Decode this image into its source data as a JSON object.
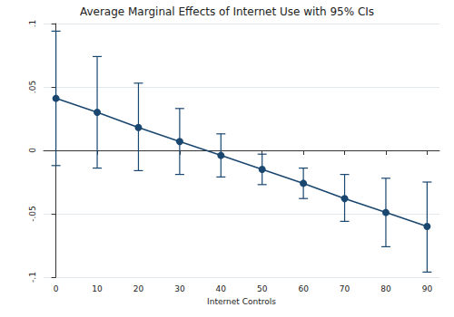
{
  "chart_data": {
    "type": "line",
    "title": "Average Marginal Effects of Internet Use with 95% CIs",
    "x_label": "Internet Controls",
    "x": [
      0,
      10,
      20,
      30,
      40,
      50,
      60,
      70,
      80,
      90
    ],
    "values": [
      0.041,
      0.03,
      0.018,
      0.007,
      -0.004,
      -0.015,
      -0.026,
      -0.038,
      -0.049,
      -0.06
    ],
    "ci_lower": [
      -0.012,
      -0.014,
      -0.016,
      -0.019,
      -0.021,
      -0.027,
      -0.038,
      -0.056,
      -0.076,
      -0.096
    ],
    "ci_upper": [
      0.094,
      0.074,
      0.053,
      0.033,
      0.013,
      -0.003,
      -0.014,
      -0.019,
      -0.022,
      -0.025
    ],
    "color": "#1a476f",
    "marker": "circle",
    "line_style": "solid",
    "grid": true,
    "xlim": [
      -3,
      93
    ],
    "xticks": [
      0,
      10,
      20,
      30,
      40,
      50,
      60,
      70,
      80,
      90
    ],
    "ylim": [
      -0.1,
      0.1
    ],
    "yticks": [
      {
        "value": -0.1,
        "label": "-.1"
      },
      {
        "value": -0.05,
        "label": "-.05"
      },
      0,
      {
        "value": 0.05,
        "label": ".05"
      },
      {
        "value": 0.1,
        "label": ".1"
      }
    ]
  }
}
